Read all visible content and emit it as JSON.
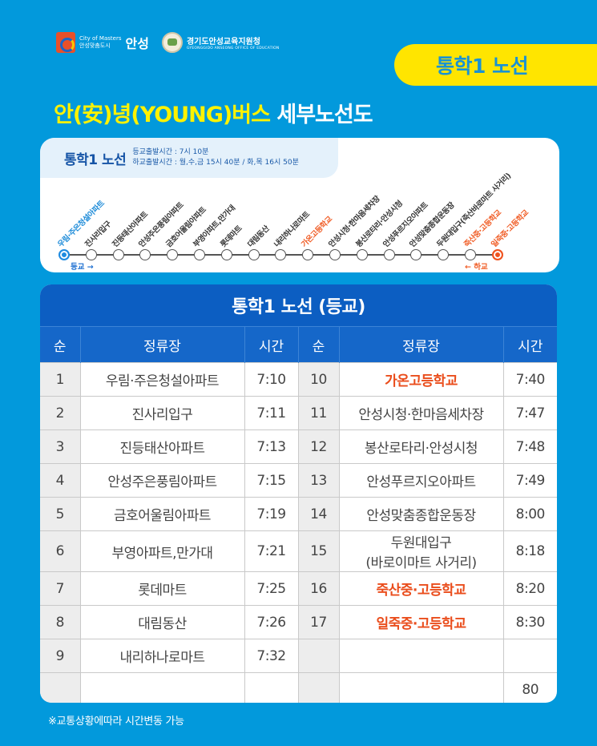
{
  "header": {
    "city_logo": {
      "tagline_en": "City of Masters",
      "tagline_ko": "안성맞춤도시",
      "name": "안성"
    },
    "edu_logo": {
      "name": "경기도안성교육지원청",
      "subtitle": "GYEONGGIDO ANSEONG OFFICE OF EDUCATION"
    },
    "route_badge": "통학1 노선",
    "title_yellow": "안(安)녕(YOUNG)버스",
    "title_white": "세부노선도"
  },
  "route_map": {
    "route_name": "통학1 노선",
    "morning_departure": "등교출발시간 : 7시 10분",
    "afternoon_departure": "하교출발시간 : 월,수,금 15시 40분 / 화,목 16시 50분",
    "direction_in": "등교 →",
    "direction_out": "← 하교",
    "colors": {
      "line": "#555555",
      "start": "#1f8be0",
      "school": "#f05a22"
    },
    "stops": [
      {
        "label": "우림·주은청설아파트",
        "type": "start"
      },
      {
        "label": "진사리입구",
        "type": "normal"
      },
      {
        "label": "진등태산아파트",
        "type": "normal"
      },
      {
        "label": "안성주은풍림아파트",
        "type": "normal"
      },
      {
        "label": "금호어울림아파트",
        "type": "normal"
      },
      {
        "label": "부영아파트,만가대",
        "type": "normal"
      },
      {
        "label": "롯데마트",
        "type": "normal"
      },
      {
        "label": "대림동산",
        "type": "normal"
      },
      {
        "label": "내리하나로마트",
        "type": "normal"
      },
      {
        "label": "가온고등학교",
        "type": "school"
      },
      {
        "label": "안성시청·한마음세차장",
        "type": "normal"
      },
      {
        "label": "봉산로타리·안성시청",
        "type": "normal"
      },
      {
        "label": "안성푸르지오아파트",
        "type": "normal"
      },
      {
        "label": "안성맞춤종합운동장",
        "type": "normal"
      },
      {
        "label": "두원대입구(죽산바로마트 사거리)",
        "type": "normal"
      },
      {
        "label": "죽산중·고등학교",
        "type": "school"
      },
      {
        "label": "일죽중·고등학교",
        "type": "end"
      }
    ]
  },
  "table": {
    "title": "통학1 노선 (등교)",
    "columns": [
      "순",
      "정류장",
      "시간",
      "순",
      "정류장",
      "시간"
    ],
    "left_rows": [
      {
        "no": "1",
        "stop": "우림·주은청설아파트",
        "time": "7:10"
      },
      {
        "no": "2",
        "stop": "진사리입구",
        "time": "7:11"
      },
      {
        "no": "3",
        "stop": "진등태산아파트",
        "time": "7:13"
      },
      {
        "no": "4",
        "stop": "안성주은풍림아파트",
        "time": "7:15"
      },
      {
        "no": "5",
        "stop": "금호어울림아파트",
        "time": "7:19"
      },
      {
        "no": "6",
        "stop": "부영아파트,만가대",
        "time": "7:21"
      },
      {
        "no": "7",
        "stop": "롯데마트",
        "time": "7:25"
      },
      {
        "no": "8",
        "stop": "대림동산",
        "time": "7:26"
      },
      {
        "no": "9",
        "stop": "내리하나로마트",
        "time": "7:32"
      },
      {
        "no": "",
        "stop": "",
        "time": ""
      }
    ],
    "right_rows": [
      {
        "no": "10",
        "stop": "가온고등학교",
        "stop2": "",
        "time": "7:40",
        "school": true
      },
      {
        "no": "11",
        "stop": "안성시청·한마음세차장",
        "stop2": "",
        "time": "7:47",
        "school": false
      },
      {
        "no": "12",
        "stop": "봉산로타리·안성시청",
        "stop2": "",
        "time": "7:48",
        "school": false
      },
      {
        "no": "13",
        "stop": "안성푸르지오아파트",
        "stop2": "",
        "time": "7:49",
        "school": false
      },
      {
        "no": "14",
        "stop": "안성맞춤종합운동장",
        "stop2": "",
        "time": "8:00",
        "school": false
      },
      {
        "no": "15",
        "stop": "두원대입구",
        "stop2": "(바로이마트 사거리)",
        "time": "8:18",
        "school": false
      },
      {
        "no": "16",
        "stop": "죽산중·고등학교",
        "stop2": "",
        "time": "8:20",
        "school": true
      },
      {
        "no": "17",
        "stop": "일죽중·고등학교",
        "stop2": "",
        "time": "8:30",
        "school": true
      },
      {
        "no": "",
        "stop": "",
        "stop2": "",
        "time": "",
        "school": false
      },
      {
        "no": "",
        "stop": "",
        "stop2": "",
        "time": "80",
        "school": false
      }
    ]
  },
  "footnote": "※교통상황에따라 시간변동 가능",
  "colors": {
    "background": "#0299dc",
    "badge_bg": "#ffe500",
    "title_yellow": "#fff200",
    "table_header": "#1567c9",
    "table_title": "#0c5ec2",
    "school_text": "#ea4d1c"
  }
}
